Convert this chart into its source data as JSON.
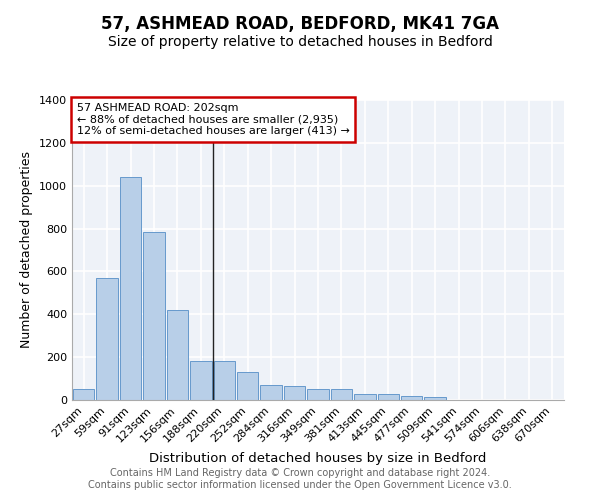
{
  "title1": "57, ASHMEAD ROAD, BEDFORD, MK41 7GA",
  "title2": "Size of property relative to detached houses in Bedford",
  "xlabel": "Distribution of detached houses by size in Bedford",
  "ylabel": "Number of detached properties",
  "categories": [
    "27sqm",
    "59sqm",
    "91sqm",
    "123sqm",
    "156sqm",
    "188sqm",
    "220sqm",
    "252sqm",
    "284sqm",
    "316sqm",
    "349sqm",
    "381sqm",
    "413sqm",
    "445sqm",
    "477sqm",
    "509sqm",
    "541sqm",
    "574sqm",
    "606sqm",
    "638sqm",
    "670sqm"
  ],
  "values": [
    50,
    570,
    1040,
    785,
    420,
    180,
    180,
    130,
    68,
    65,
    50,
    50,
    28,
    28,
    20,
    13,
    0,
    0,
    0,
    0,
    0
  ],
  "bar_color": "#b8cfe8",
  "bar_edge_color": "#6699cc",
  "background_color": "#eef2f8",
  "grid_color": "#ffffff",
  "annotation_line1": "57 ASHMEAD ROAD: 202sqm",
  "annotation_line2": "← 88% of detached houses are smaller (2,935)",
  "annotation_line3": "12% of semi-detached houses are larger (413) →",
  "annotation_box_color": "white",
  "annotation_box_edge": "#cc0000",
  "property_line_index": 5.5,
  "ylim": [
    0,
    1400
  ],
  "yticks": [
    0,
    200,
    400,
    600,
    800,
    1000,
    1200,
    1400
  ],
  "footer": "Contains HM Land Registry data © Crown copyright and database right 2024.\nContains public sector information licensed under the Open Government Licence v3.0.",
  "title1_fontsize": 12,
  "title2_fontsize": 10,
  "xlabel_fontsize": 9.5,
  "ylabel_fontsize": 9,
  "tick_fontsize": 8,
  "footer_fontsize": 7,
  "ann_fontsize": 8
}
